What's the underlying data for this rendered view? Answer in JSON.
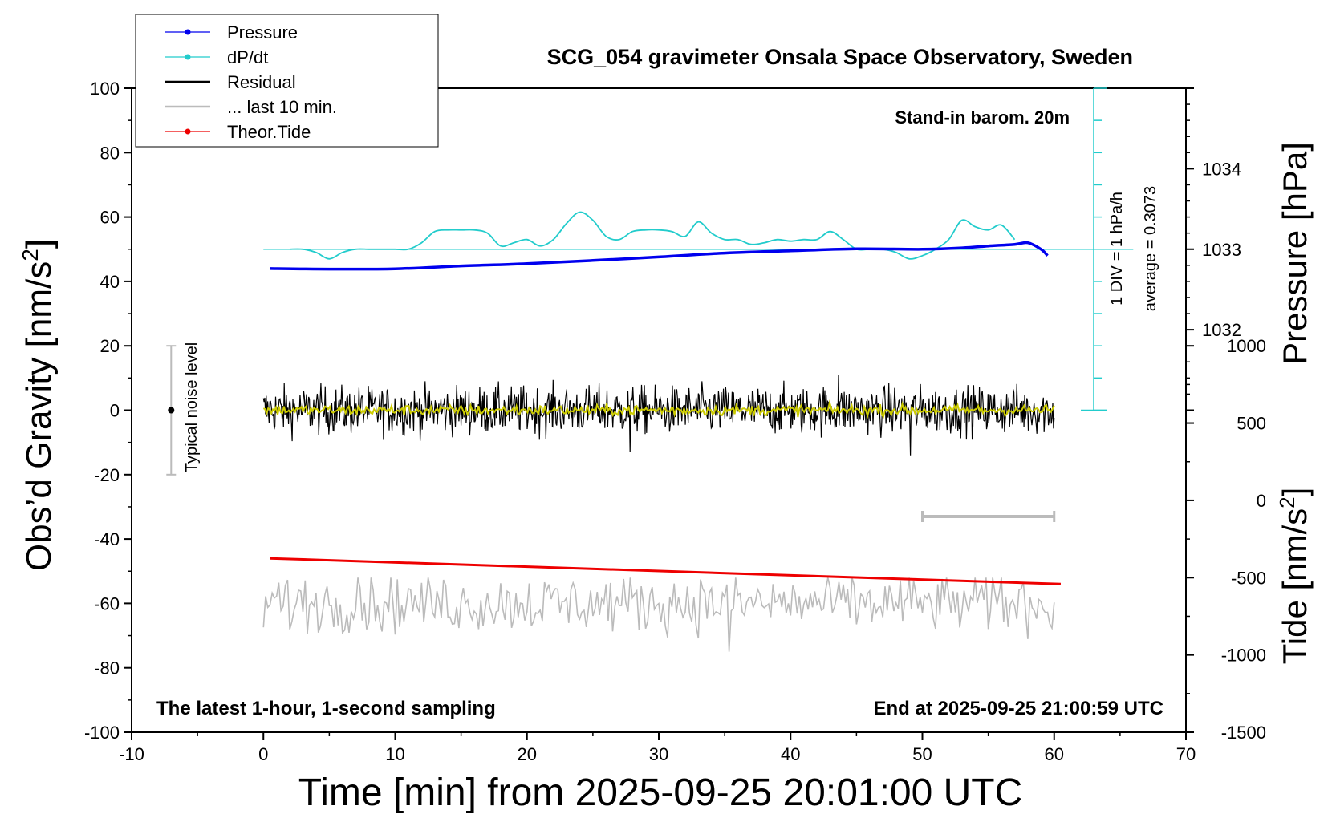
{
  "chart_data": {
    "type": "line",
    "title": "SCG_054 gravimeter Onsala Space Observatory, Sweden",
    "xlabel": "Time [min] from 2025-09-25 20:01:00 UTC",
    "ylabel_left": "Obs’d Gravity [nm/s",
    "ylabel_left_sup": "2",
    "ylabel_left_close": "]",
    "ylabel_right_top": "Pressure [hPa]",
    "ylabel_right_bottom": "Tide [nm/s",
    "ylabel_right_bottom_sup": "2",
    "ylabel_right_bottom_close": "]",
    "xlim": [
      -10,
      70
    ],
    "ylim": [
      -100,
      100
    ],
    "x_ticks": [
      -10,
      0,
      10,
      20,
      30,
      40,
      50,
      60,
      70
    ],
    "y_ticks": [
      -100,
      -80,
      -60,
      -40,
      -20,
      0,
      20,
      40,
      60,
      80,
      100
    ],
    "pressure_ticks": [
      1032,
      1033,
      1034
    ],
    "pressure_scale": {
      "value_at_0": 1031,
      "value_at_100": 1035
    },
    "tide_ticks": [
      -1500,
      -1000,
      -500,
      0,
      500,
      1000
    ],
    "tide_scale": {
      "value_at_minus100": -1500,
      "value_at_20": 1000
    },
    "grid": false,
    "legend_position": "top-left",
    "legend": [
      {
        "label": "Pressure",
        "color": "#0000ee",
        "marker": true
      },
      {
        "label": "dP/dt",
        "color": "#22cccc",
        "marker": true
      },
      {
        "label": "Residual",
        "color": "#000000",
        "marker": false
      },
      {
        "label": "... last 10 min.",
        "color": "#bbbbbb",
        "marker": false
      },
      {
        "label": "Theor.Tide",
        "color": "#ee0000",
        "marker": true
      }
    ],
    "annotations": {
      "barometer": "Stand-in barom. 20m",
      "div_label": "1 DIV = 1 hPa/h",
      "average_label": "average = 0.3073",
      "noise_label": "Typical noise level",
      "bottom_left": "The latest 1-hour, 1-second sampling",
      "bottom_right": "End at 2025-09-25 21:00:59 UTC"
    },
    "noise_level": {
      "x": -7,
      "center": 0,
      "low": -20,
      "high": 20
    },
    "last10_bar": {
      "x_start": 50,
      "x_end": 60,
      "y": -33
    },
    "dpdt_baseline": 50,
    "dpdt_scale": {
      "y_min": 0,
      "y_max": 100,
      "x": 63
    },
    "series": [
      {
        "name": "Pressure",
        "color": "#0000ee",
        "x": [
          0.5,
          5,
          10,
          15,
          20,
          25,
          30,
          35,
          40,
          45,
          50,
          53,
          55,
          57,
          58,
          59,
          59.5
        ],
        "y": [
          44,
          43.8,
          43.9,
          44.8,
          45.5,
          46.5,
          47.6,
          48.8,
          49.5,
          50.1,
          50.0,
          50.4,
          51.0,
          51.5,
          52.0,
          50.0,
          48.0
        ]
      },
      {
        "name": "dP/dt",
        "color": "#22cccc",
        "x": [
          2,
          3,
          4,
          5,
          6,
          7,
          8,
          9,
          10,
          11,
          12,
          13,
          14,
          15,
          16,
          17,
          18,
          19,
          20,
          21,
          22,
          23,
          24,
          25,
          26,
          27,
          28,
          29,
          30,
          31,
          32,
          33,
          34,
          35,
          36,
          37,
          38,
          39,
          40,
          41,
          42,
          43,
          44,
          45,
          46,
          47,
          48,
          49,
          50,
          51,
          52,
          53,
          54,
          55,
          56,
          57
        ],
        "y": [
          50,
          50,
          49,
          47,
          49,
          50,
          50,
          50,
          50,
          50,
          52,
          55.5,
          56,
          56,
          56,
          55,
          51,
          52,
          53,
          51,
          53,
          58,
          61.5,
          59,
          54,
          53,
          55.5,
          56,
          56,
          55.5,
          54,
          58.5,
          55,
          53,
          53,
          51.5,
          52,
          53,
          52.5,
          53,
          53,
          55.5,
          53,
          50,
          50,
          50,
          49,
          47,
          48,
          50,
          53,
          59,
          57,
          56,
          57.5,
          53
        ]
      },
      {
        "name": "Residual",
        "color": "#000000",
        "x_range": [
          0,
          60
        ],
        "amplitude": 8,
        "minimum": -14,
        "maximum": 11
      },
      {
        "name": "Residual smoothed",
        "color": "#cccc00",
        "x_range": [
          0,
          60
        ],
        "amplitude": 2
      },
      {
        "name": "Theor.Tide",
        "color": "#ee0000",
        "x": [
          0.5,
          60.5
        ],
        "y": [
          -46,
          -54
        ]
      },
      {
        "name": "... last 10 min.",
        "color": "#bbbbbb",
        "x_range": [
          0,
          60
        ],
        "center": -60,
        "amplitude": 7,
        "minimum": -75,
        "maximum": -52
      }
    ]
  }
}
